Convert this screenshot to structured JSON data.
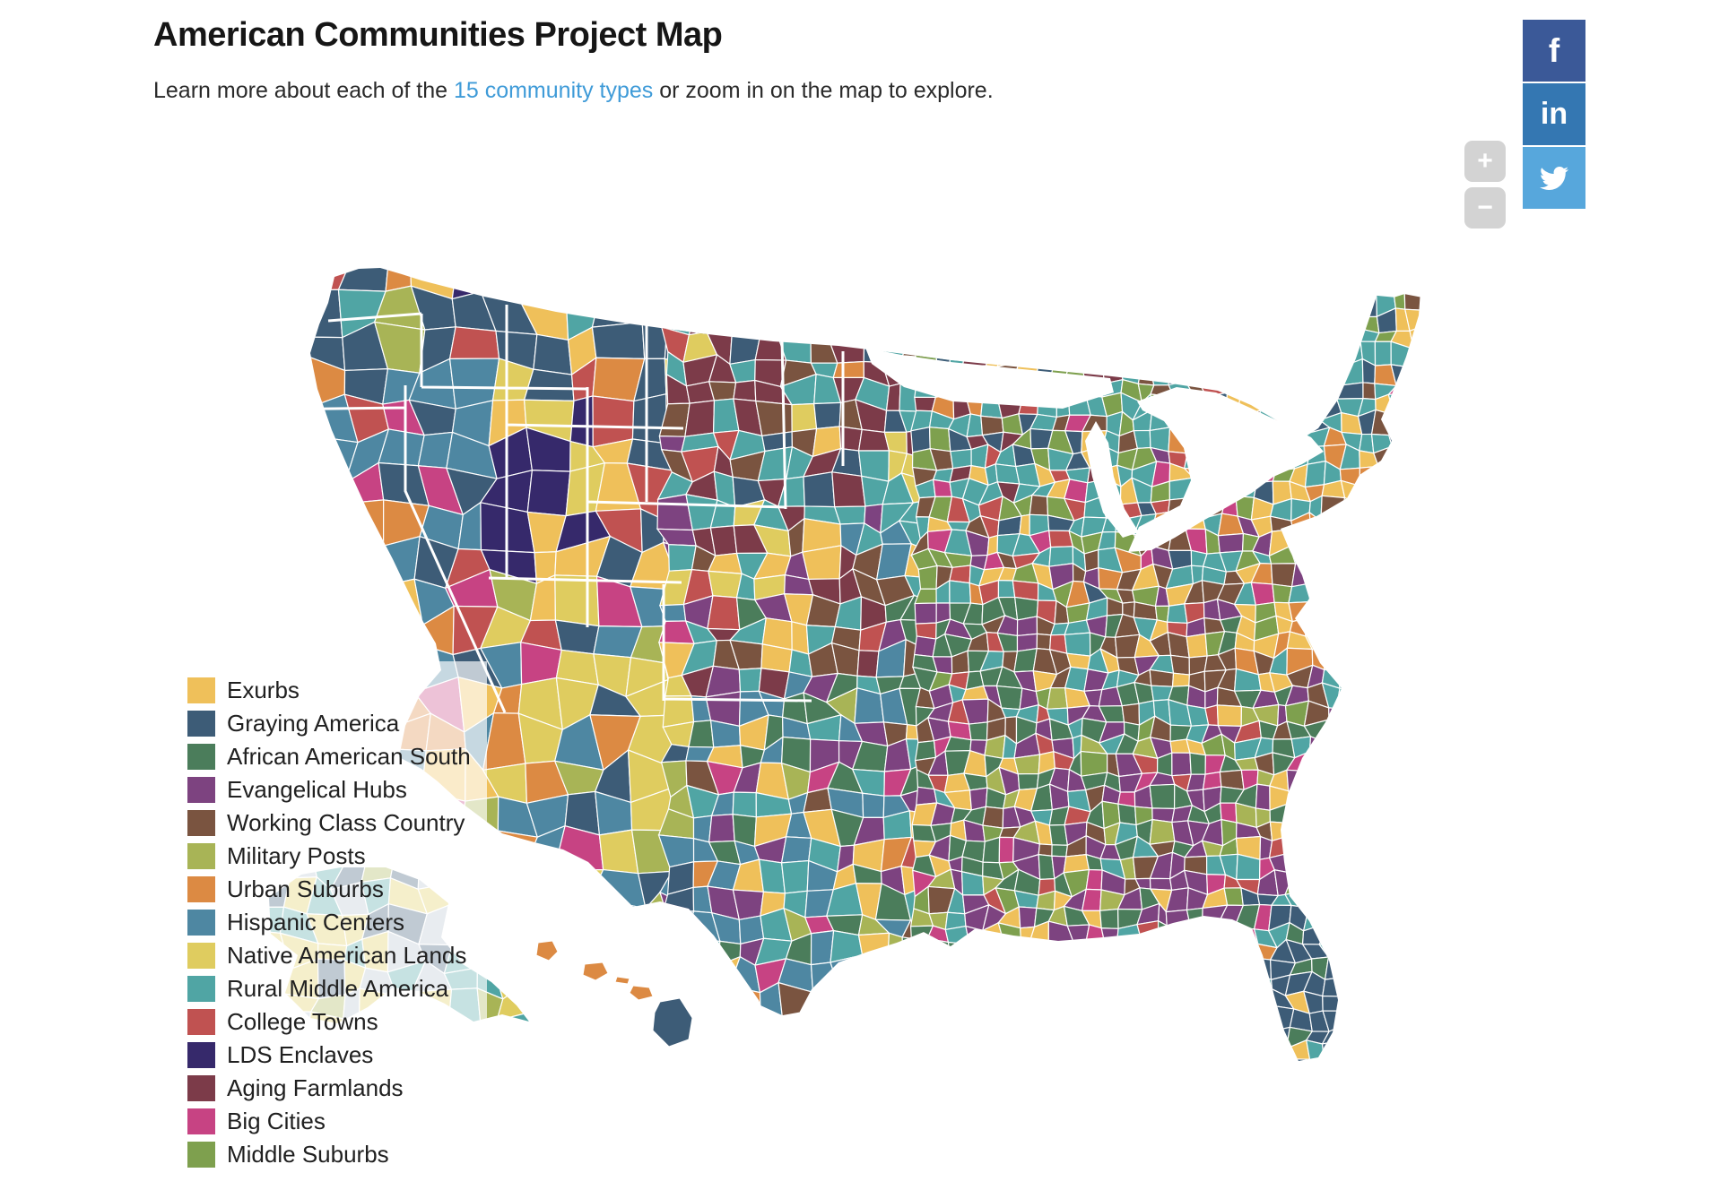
{
  "header": {
    "title": "American Communities Project Map",
    "subtitle_pre": "Learn more about each of the ",
    "subtitle_link": "15 community types",
    "subtitle_post": " or zoom in on the map to explore.",
    "link_color": "#3f9bd8",
    "text_color": "#161616"
  },
  "legend": {
    "items": [
      {
        "label": "Exurbs",
        "color": "#efc05a"
      },
      {
        "label": "Graying America",
        "color": "#3d5c77"
      },
      {
        "label": "African American South",
        "color": "#4b7d5b"
      },
      {
        "label": "Evangelical Hubs",
        "color": "#7d4380"
      },
      {
        "label": "Working Class Country",
        "color": "#7a5440"
      },
      {
        "label": "Military Posts",
        "color": "#a8b456"
      },
      {
        "label": "Urban Suburbs",
        "color": "#dc8a43"
      },
      {
        "label": "Hispanic Centers",
        "color": "#4e87a2"
      },
      {
        "label": "Native American Lands",
        "color": "#dfcc5f"
      },
      {
        "label": "Rural Middle America",
        "color": "#50a5a4"
      },
      {
        "label": "College Towns",
        "color": "#c05251"
      },
      {
        "label": "LDS Enclaves",
        "color": "#36296b"
      },
      {
        "label": "Aging Farmlands",
        "color": "#7c3b49"
      },
      {
        "label": "Big Cities",
        "color": "#c74383"
      },
      {
        "label": "Middle Suburbs",
        "color": "#7ea04e"
      }
    ]
  },
  "social": {
    "buttons": [
      {
        "name": "facebook",
        "glyph": "f",
        "bg": "#3b5998"
      },
      {
        "name": "linkedin",
        "glyph": "in",
        "bg": "#3477b2"
      },
      {
        "name": "twitter",
        "glyph": "bird",
        "bg": "#57a7dc"
      }
    ]
  },
  "map_controls": {
    "zoom_in": "+",
    "zoom_out": "−"
  },
  "map": {
    "alaska_gray": "#b9c3cf",
    "county_border_color": "#ffffff",
    "state_border_color": "#ffffff",
    "ocean_color": "#ffffff"
  }
}
